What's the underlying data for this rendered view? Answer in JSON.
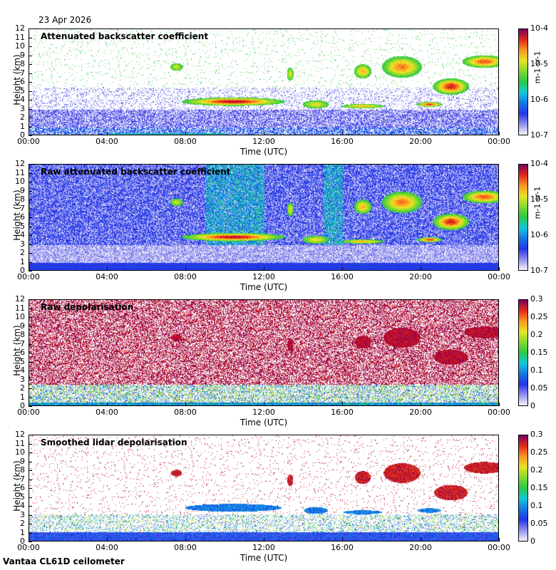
{
  "date": "23 Apr 2026",
  "footer": "Vantaa CL61D ceilometer",
  "chart_data": [
    {
      "type": "heatmap",
      "title": "Attenuated backscatter coefficient",
      "xlabel": "Time (UTC)",
      "ylabel": "Height (km)",
      "x_ticks": [
        "00:00",
        "04:00",
        "08:00",
        "12:00",
        "16:00",
        "20:00",
        "00:00"
      ],
      "y_ticks": [
        "0",
        "1",
        "2",
        "3",
        "4",
        "5",
        "6",
        "7",
        "8",
        "9",
        "10",
        "11",
        "12"
      ],
      "ylim": [
        0,
        12
      ],
      "colorbar": {
        "scale": "log",
        "ticks": [
          "10-4",
          "10-5",
          "10-6",
          "10-7"
        ],
        "unit": "m-1 sr-1"
      },
      "features": [
        {
          "time_start_h": 8.9,
          "time_end_h": 12.0,
          "height_km": 3.9,
          "thickness_km": 0.8,
          "intensity": "high"
        },
        {
          "time_start_h": 15.8,
          "time_end_h": 18.2,
          "height_km": 3.4,
          "thickness_km": 0.4,
          "intensity": "moderate"
        },
        {
          "time_start_h": 19.8,
          "time_end_h": 21.0,
          "height_km": 3.6,
          "thickness_km": 0.4,
          "intensity": "high"
        },
        {
          "time_start_h": 17.8,
          "time_end_h": 24.0,
          "height_km": 8.0,
          "thickness_km": 2.5,
          "intensity": "moderate"
        },
        {
          "time_start_h": 21.0,
          "time_end_h": 22.4,
          "height_km": 5.7,
          "thickness_km": 1.6,
          "intensity": "high"
        }
      ]
    },
    {
      "type": "heatmap",
      "title": "Raw attenuated backscatter coefficient",
      "xlabel": "Time (UTC)",
      "ylabel": "Height (km)",
      "x_ticks": [
        "00:00",
        "04:00",
        "08:00",
        "12:00",
        "16:00",
        "20:00",
        "00:00"
      ],
      "y_ticks": [
        "0",
        "1",
        "2",
        "3",
        "4",
        "5",
        "6",
        "7",
        "8",
        "9",
        "10",
        "11",
        "12"
      ],
      "ylim": [
        0,
        12
      ],
      "colorbar": {
        "scale": "log",
        "ticks": [
          "10-4",
          "10-5",
          "10-6",
          "10-7"
        ],
        "unit": "m-1 sr-1"
      }
    },
    {
      "type": "heatmap",
      "title": "Raw depolarisation",
      "xlabel": "Time (UTC)",
      "ylabel": "Height (km)",
      "x_ticks": [
        "00:00",
        "04:00",
        "08:00",
        "12:00",
        "16:00",
        "20:00",
        "00:00"
      ],
      "y_ticks": [
        "0",
        "1",
        "2",
        "3",
        "4",
        "5",
        "6",
        "7",
        "8",
        "9",
        "10",
        "11",
        "12"
      ],
      "ylim": [
        0,
        12
      ],
      "colorbar": {
        "scale": "linear",
        "range": [
          0,
          0.3
        ],
        "ticks": [
          "0.3",
          "0.25",
          "0.2",
          "0.15",
          "0.1",
          "0.05",
          "0"
        ]
      }
    },
    {
      "type": "heatmap",
      "title": "Smoothed lidar depolarisation",
      "xlabel": "Time (UTC)",
      "ylabel": "Height (km)",
      "x_ticks": [
        "00:00",
        "04:00",
        "08:00",
        "12:00",
        "16:00",
        "20:00",
        "00:00"
      ],
      "y_ticks": [
        "0",
        "1",
        "2",
        "3",
        "4",
        "5",
        "6",
        "7",
        "8",
        "9",
        "10",
        "11",
        "12"
      ],
      "ylim": [
        0,
        12
      ],
      "colorbar": {
        "scale": "linear",
        "range": [
          0,
          0.3
        ],
        "ticks": [
          "0.3",
          "0.25",
          "0.2",
          "0.15",
          "0.1",
          "0.05",
          "0"
        ]
      }
    }
  ]
}
